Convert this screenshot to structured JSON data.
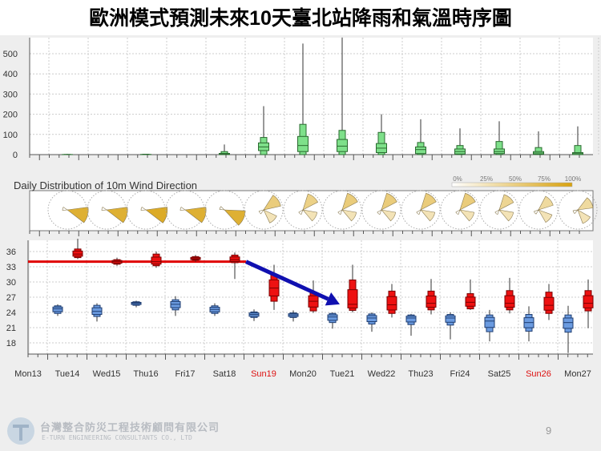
{
  "title": "歐洲模式預測未來10天臺北站降雨和氣溫時序圖",
  "footer": {
    "company_cn": "台灣整合防災工程技術顧問有限公司",
    "company_en": "E-TURN ENGINEERING CONSULTANTS CO., LTD",
    "page": "9"
  },
  "chart_data": [
    {
      "type": "box",
      "panel": "precipitation",
      "ylim": [
        0,
        580
      ],
      "yticks": [
        0,
        100,
        200,
        300,
        400,
        500
      ],
      "grid": true,
      "color": "#7ee08a",
      "days": [
        "Mon13",
        "Tue14",
        "Wed15",
        "Thu16",
        "Fri17",
        "Sat18",
        "Sun19",
        "Mon20",
        "Tue21",
        "Wed22",
        "Thu23",
        "Fri24",
        "Sat25",
        "Sun26",
        "Mon27"
      ],
      "boxes": [
        null,
        {
          "max": 4,
          "outer": [
            0,
            1
          ],
          "inner": [
            0,
            0.5
          ],
          "median": 0
        },
        null,
        {
          "max": 3,
          "outer": [
            0,
            2
          ],
          "inner": [
            0,
            1
          ],
          "median": 0
        },
        null,
        {
          "max": 50,
          "outer": [
            0,
            15
          ],
          "inner": [
            0,
            6
          ],
          "median": 2
        },
        {
          "max": 240,
          "outer": [
            0,
            85
          ],
          "inner": [
            20,
            58
          ],
          "median": 38
        },
        {
          "max": 550,
          "outer": [
            0,
            150
          ],
          "inner": [
            15,
            90
          ],
          "median": 45
        },
        {
          "max": 600,
          "outer": [
            0,
            120
          ],
          "inner": [
            15,
            75
          ],
          "median": 42
        },
        {
          "max": 200,
          "outer": [
            0,
            110
          ],
          "inner": [
            10,
            55
          ],
          "median": 32
        },
        {
          "max": 175,
          "outer": [
            0,
            60
          ],
          "inner": [
            5,
            38
          ],
          "median": 25
        },
        {
          "max": 130,
          "outer": [
            0,
            45
          ],
          "inner": [
            3,
            28
          ],
          "median": 15
        },
        {
          "max": 165,
          "outer": [
            0,
            65
          ],
          "inner": [
            5,
            28
          ],
          "median": 15
        },
        {
          "max": 115,
          "outer": [
            0,
            35
          ],
          "inner": [
            2,
            15
          ],
          "median": 8
        },
        {
          "max": 140,
          "outer": [
            0,
            45
          ],
          "inner": [
            0,
            10
          ],
          "median": 5
        }
      ]
    },
    {
      "type": "wind-rose",
      "panel": "wind",
      "title": "Daily Distribution of 10m Wind Direction",
      "legend": [
        "0%",
        "25%",
        "50%",
        "75%",
        "100%"
      ],
      "legend_colors": [
        "#ffffff",
        "#d8a20f"
      ],
      "days": [
        "Tue14",
        "Wed15",
        "Thu16",
        "Fri17",
        "Sat18",
        "Sun19",
        "Mon20",
        "Tue21",
        "Wed22",
        "Thu23",
        "Fri24",
        "Sat25",
        "Sun26",
        "Mon27"
      ],
      "dominant_direction_deg": [
        105,
        105,
        105,
        105,
        115,
        55,
        40,
        40,
        40,
        40,
        40,
        40,
        50,
        60
      ],
      "dominant_share": [
        0.85,
        0.85,
        0.9,
        0.85,
        0.85,
        0.55,
        0.5,
        0.55,
        0.55,
        0.55,
        0.55,
        0.45,
        0.4,
        0.4
      ]
    },
    {
      "type": "box",
      "panel": "temperature",
      "ylim": [
        15.8,
        38.5
      ],
      "yticks": [
        18,
        21,
        24,
        27,
        30,
        33,
        36
      ],
      "grid": true,
      "xticks": [
        "Mon13",
        "Tue14",
        "Wed15",
        "Thu16",
        "Fri17",
        "Sat18",
        "Sun19",
        "Mon20",
        "Tue21",
        "Wed22",
        "Thu23",
        "Fri24",
        "Sat25",
        "Sun26",
        "Mon27"
      ],
      "weekend_color": "#dd1111",
      "weekend_labels": [
        "Sun19",
        "Sun26"
      ],
      "series": [
        {
          "name": "min",
          "color": "#6b9be0",
          "boxes": [
            null,
            [
              23.3,
              23.8,
              24.7,
              25.3,
              25.6
            ],
            [
              22.2,
              23.2,
              24.2,
              25.4,
              25.8
            ],
            [
              25,
              25.4,
              25.8,
              26.1,
              26.3
            ],
            [
              23.3,
              24.5,
              25.6,
              26.5,
              27.2
            ],
            [
              23.3,
              23.8,
              24.6,
              25.3,
              25.8
            ],
            [
              22.3,
              23,
              23.6,
              24.1,
              24.6
            ],
            [
              22.2,
              23,
              23.5,
              23.9,
              24.4
            ],
            [
              20.8,
              22,
              23.1,
              23.8,
              24
            ],
            [
              20.2,
              21.7,
              22.9,
              23.7,
              24
            ],
            [
              19.4,
              21.6,
              22.9,
              23.5,
              23.7
            ],
            [
              18.7,
              21.5,
              22.9,
              23.6,
              24
            ],
            [
              18.3,
              20.2,
              22.3,
              23.5,
              24.5
            ],
            [
              18.3,
              20.3,
              22,
              23.6,
              25.2
            ],
            [
              16,
              20.1,
              22,
              23.5,
              25.3
            ]
          ]
        },
        {
          "name": "max",
          "color": "#ee1111",
          "boxes": [
            null,
            [
              34.5,
              34.8,
              35.5,
              36.5,
              38.5
            ],
            [
              33.2,
              33.5,
              34,
              34.4,
              34.8
            ],
            [
              32.8,
              33.2,
              34,
              35.5,
              36
            ],
            [
              34,
              34.3,
              34.6,
              35,
              35.3
            ],
            [
              30.6,
              33.8,
              34.4,
              35.3,
              35.8
            ],
            [
              24.5,
              26.2,
              28.8,
              31.5,
              33.4
            ],
            [
              23.9,
              24.3,
              26.2,
              28,
              30.3
            ],
            [
              24,
              24.4,
              25.6,
              30.4,
              33.4
            ],
            [
              23,
              23.8,
              25.5,
              28.2,
              29.6
            ],
            [
              23.6,
              24.5,
              25.8,
              28.2,
              30.6
            ],
            [
              24.5,
              24.7,
              26,
              27.7,
              30.5
            ],
            [
              23.8,
              24.5,
              25.8,
              28.3,
              30.8
            ],
            [
              22.5,
              23.8,
              25.4,
              28,
              29.6
            ],
            [
              20.9,
              24.3,
              25.8,
              28.3,
              30.5
            ]
          ]
        }
      ],
      "annotations": {
        "reference_line": 34,
        "reference_color": "#e00000",
        "arrow_color": "#1010b0",
        "arrow_from": [
          "Sat18",
          34
        ],
        "arrow_to": [
          "Tue21",
          26
        ]
      }
    }
  ]
}
